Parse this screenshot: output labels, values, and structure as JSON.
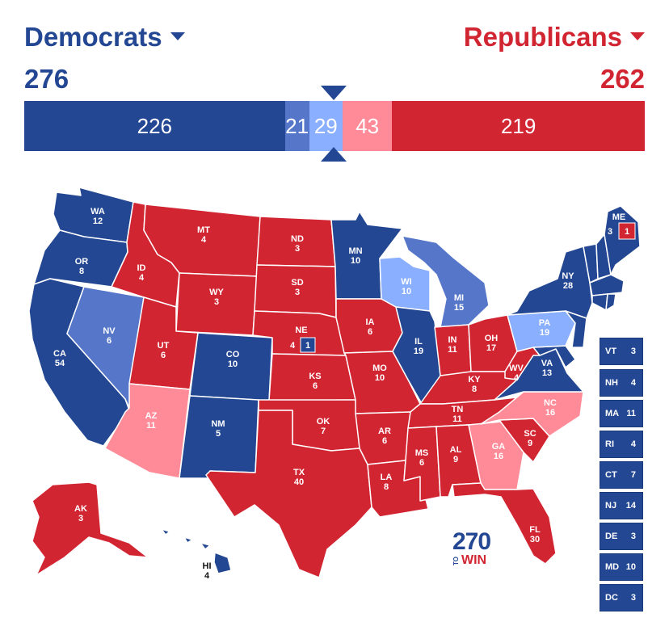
{
  "header": {
    "dem_label": "Democrats",
    "rep_label": "Republicans",
    "dem_total": "276",
    "rep_total": "262"
  },
  "bar": [
    {
      "label": "226",
      "value": 226,
      "color": "#234792"
    },
    {
      "label": "21",
      "value": 21,
      "color": "#5677c9"
    },
    {
      "label": "29",
      "value": 29,
      "color": "#8aafff"
    },
    {
      "label": "43",
      "value": 43,
      "color": "#ff8b98"
    },
    {
      "label": "219",
      "value": 219,
      "color": "#d22532"
    }
  ],
  "colors": {
    "safe_dem": "#234792",
    "likely_dem": "#5677c9",
    "lean_dem": "#8aafff",
    "lean_rep": "#ff8b98",
    "safe_rep": "#d22532"
  },
  "states": {
    "WA": {
      "abbr": "WA",
      "ev": "12"
    },
    "OR": {
      "abbr": "OR",
      "ev": "8"
    },
    "CA": {
      "abbr": "CA",
      "ev": "54"
    },
    "NV": {
      "abbr": "NV",
      "ev": "6"
    },
    "ID": {
      "abbr": "ID",
      "ev": "4"
    },
    "MT": {
      "abbr": "MT",
      "ev": "4"
    },
    "WY": {
      "abbr": "WY",
      "ev": "3"
    },
    "UT": {
      "abbr": "UT",
      "ev": "6"
    },
    "AZ": {
      "abbr": "AZ",
      "ev": "11"
    },
    "CO": {
      "abbr": "CO",
      "ev": "10"
    },
    "NM": {
      "abbr": "NM",
      "ev": "5"
    },
    "ND": {
      "abbr": "ND",
      "ev": "3"
    },
    "SD": {
      "abbr": "SD",
      "ev": "3"
    },
    "NE": {
      "abbr": "NE",
      "ev": "4"
    },
    "NE_district": {
      "ev": "1"
    },
    "KS": {
      "abbr": "KS",
      "ev": "6"
    },
    "OK": {
      "abbr": "OK",
      "ev": "7"
    },
    "TX": {
      "abbr": "TX",
      "ev": "40"
    },
    "MN": {
      "abbr": "MN",
      "ev": "10"
    },
    "IA": {
      "abbr": "IA",
      "ev": "6"
    },
    "MO": {
      "abbr": "MO",
      "ev": "10"
    },
    "AR": {
      "abbr": "AR",
      "ev": "6"
    },
    "LA": {
      "abbr": "LA",
      "ev": "8"
    },
    "WI": {
      "abbr": "WI",
      "ev": "10"
    },
    "IL": {
      "abbr": "IL",
      "ev": "19"
    },
    "MI": {
      "abbr": "MI",
      "ev": "15"
    },
    "IN": {
      "abbr": "IN",
      "ev": "11"
    },
    "OH": {
      "abbr": "OH",
      "ev": "17"
    },
    "KY": {
      "abbr": "KY",
      "ev": "8"
    },
    "TN": {
      "abbr": "TN",
      "ev": "11"
    },
    "MS": {
      "abbr": "MS",
      "ev": "6"
    },
    "AL": {
      "abbr": "AL",
      "ev": "9"
    },
    "GA": {
      "abbr": "GA",
      "ev": "16"
    },
    "FL": {
      "abbr": "FL",
      "ev": "30"
    },
    "SC": {
      "abbr": "SC",
      "ev": "9"
    },
    "NC": {
      "abbr": "NC",
      "ev": "16"
    },
    "VA": {
      "abbr": "VA",
      "ev": "13"
    },
    "WV": {
      "abbr": "WV",
      "ev": "4"
    },
    "PA": {
      "abbr": "PA",
      "ev": "19"
    },
    "NY": {
      "abbr": "NY",
      "ev": "28"
    },
    "ME": {
      "abbr": "ME",
      "ev": "3"
    },
    "ME_district": {
      "ev": "1"
    },
    "AK": {
      "abbr": "AK",
      "ev": "3"
    },
    "HI": {
      "abbr": "HI",
      "ev": "4"
    }
  },
  "small_states": [
    {
      "abbr": "VT",
      "ev": "3"
    },
    {
      "abbr": "NH",
      "ev": "4"
    },
    {
      "abbr": "MA",
      "ev": "11"
    },
    {
      "abbr": "RI",
      "ev": "4"
    },
    {
      "abbr": "CT",
      "ev": "7"
    },
    {
      "abbr": "NJ",
      "ev": "14"
    },
    {
      "abbr": "DE",
      "ev": "3"
    },
    {
      "abbr": "MD",
      "ev": "10"
    },
    {
      "abbr": "DC",
      "ev": "3"
    }
  ],
  "logo": {
    "number": "270",
    "to": "TO",
    "win": "WIN"
  }
}
